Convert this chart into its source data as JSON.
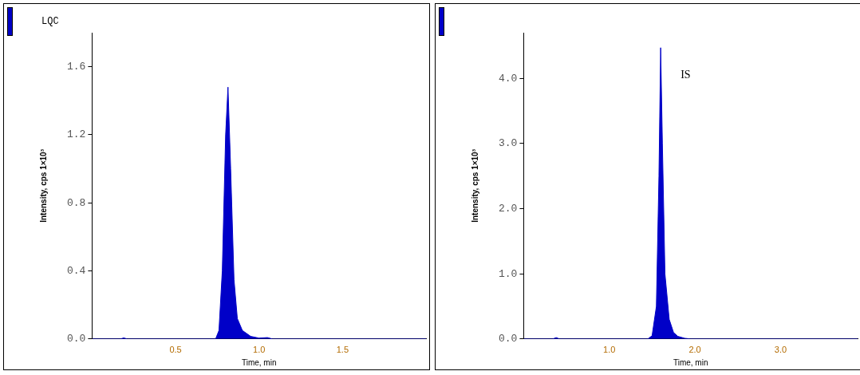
{
  "chart_data": [
    {
      "type": "area",
      "title": "LQC",
      "xlabel": "Time, min",
      "ylabel": "Intensity, cps 1×10³",
      "series": [
        {
          "color": "#0000c8",
          "x": [
            0,
            0.17,
            0.19,
            0.21,
            0.74,
            0.76,
            0.78,
            0.8,
            0.814,
            0.83,
            0.85,
            0.87,
            0.9,
            0.95,
            1.0,
            1.05,
            1.08,
            2.0
          ],
          "values": [
            0,
            0,
            0.006,
            0,
            0,
            0.05,
            0.4,
            1.2,
            1.48,
            1.0,
            0.35,
            0.12,
            0.05,
            0.015,
            0.005,
            0.008,
            0,
            0
          ]
        }
      ],
      "xlim": [
        0,
        2.0
      ],
      "xticks": [
        0.5,
        {
          "value": 1,
          "label": "1.0"
        },
        1.5
      ],
      "ylim": [
        0,
        1.8
      ],
      "yticks": [
        {
          "value": 0,
          "label": "0.0"
        },
        0.4,
        0.8,
        1.2,
        1.6
      ],
      "grid": false,
      "legend": false
    },
    {
      "type": "area",
      "xlabel": "Time, min",
      "ylabel": "Intensity, cps 1×10³",
      "annotations": [
        "IS"
      ],
      "series": [
        {
          "color": "#0000c8",
          "x": [
            0,
            0.34,
            0.38,
            0.42,
            1.45,
            1.5,
            1.55,
            1.58,
            1.6,
            1.62,
            1.65,
            1.7,
            1.75,
            1.8,
            1.88,
            1.95,
            3.9
          ],
          "values": [
            0,
            0,
            0.02,
            0,
            0,
            0.05,
            0.5,
            2.5,
            4.47,
            3.0,
            1.0,
            0.3,
            0.1,
            0.04,
            0.01,
            0,
            0
          ]
        }
      ],
      "xlim": [
        0,
        3.9
      ],
      "xticks": [
        {
          "value": 1,
          "label": "1.0"
        },
        {
          "value": 2,
          "label": "2.0"
        },
        {
          "value": 3,
          "label": "3.0"
        }
      ],
      "ylim": [
        0,
        4.7
      ],
      "yticks": [
        {
          "value": 0,
          "label": "0.0"
        },
        {
          "value": 1,
          "label": "1.0"
        },
        {
          "value": 2,
          "label": "2.0"
        },
        {
          "value": 3,
          "label": "3.0"
        },
        {
          "value": 4,
          "label": "4.0"
        }
      ],
      "grid": false,
      "legend": false
    }
  ]
}
